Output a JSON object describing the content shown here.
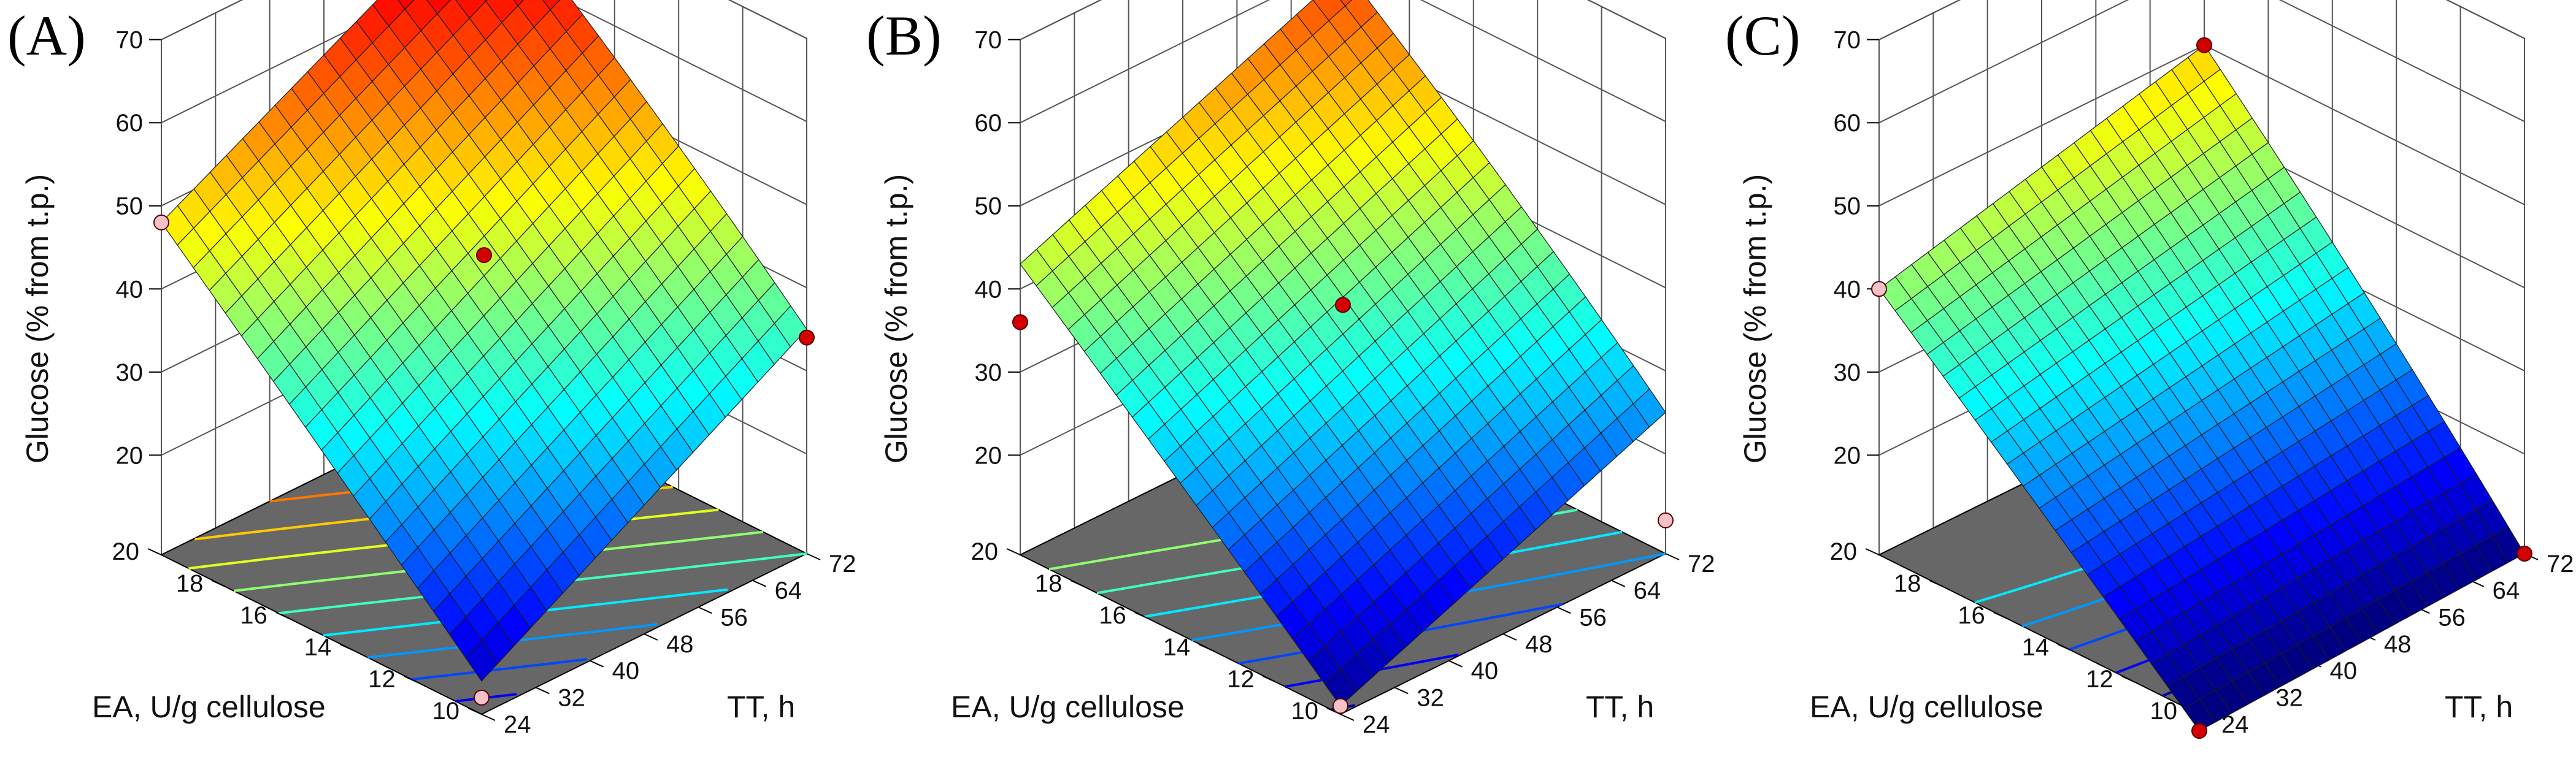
{
  "chart_data": [
    {
      "type": "surface3d",
      "panel_label": "(A)",
      "zlabel": "Glucose (% from t.p.)",
      "xlabel": "EA, U/g cellulose",
      "ylabel": "TT, h",
      "x_ticks": [
        "10",
        "12",
        "14",
        "16",
        "18",
        "20"
      ],
      "y_ticks": [
        "24",
        "32",
        "40",
        "48",
        "56",
        "64",
        "72"
      ],
      "z_ticks": [
        "20",
        "30",
        "40",
        "50",
        "60",
        "70"
      ],
      "xlim": [
        10,
        20
      ],
      "ylim": [
        24,
        72
      ],
      "zlim": [
        8,
        70
      ],
      "surface_corners": {
        "EA10_TT24": 12,
        "EA20_TT24": 48,
        "EA10_TT72": 35,
        "EA20_TT72": 69
      },
      "design_points": [
        {
          "EA": 20,
          "TT": 24,
          "glucose": 48,
          "position": "below"
        },
        {
          "EA": 10,
          "TT": 24,
          "glucose": 10,
          "position": "below"
        },
        {
          "EA": 20,
          "TT": 72,
          "glucose": 69,
          "position": "below"
        },
        {
          "EA": 10,
          "TT": 72,
          "glucose": 34,
          "position": "above"
        },
        {
          "EA": 15,
          "TT": 48,
          "glucose": 44,
          "position": "above"
        }
      ],
      "contour_levels": [
        15,
        20,
        25,
        30,
        35,
        40,
        45,
        50,
        55,
        60
      ]
    },
    {
      "type": "surface3d",
      "panel_label": "(B)",
      "zlabel": "Glucose (% from t.p.)",
      "xlabel": "EA, U/g cellulose",
      "ylabel": "TT, h",
      "x_ticks": [
        "10",
        "12",
        "14",
        "16",
        "18",
        "20"
      ],
      "y_ticks": [
        "24",
        "32",
        "40",
        "48",
        "56",
        "64",
        "72"
      ],
      "z_ticks": [
        "20",
        "30",
        "40",
        "50",
        "60",
        "70"
      ],
      "xlim": [
        10,
        20
      ],
      "ylim": [
        24,
        72
      ],
      "zlim": [
        8,
        70
      ],
      "surface_corners": {
        "EA10_TT24": 9,
        "EA20_TT24": 43,
        "EA10_TT72": 25,
        "EA20_TT72": 59
      },
      "design_points": [
        {
          "EA": 20,
          "TT": 24,
          "glucose": 36,
          "position": "above"
        },
        {
          "EA": 10,
          "TT": 24,
          "glucose": 9,
          "position": "below"
        },
        {
          "EA": 20,
          "TT": 72,
          "glucose": 64,
          "position": "above"
        },
        {
          "EA": 10,
          "TT": 72,
          "glucose": 12,
          "position": "below"
        },
        {
          "EA": 15,
          "TT": 48,
          "glucose": 38,
          "position": "above"
        }
      ],
      "contour_levels": [
        10,
        15,
        20,
        25,
        30,
        35,
        40
      ]
    },
    {
      "type": "surface3d",
      "panel_label": "(C)",
      "zlabel": "Glucose (% from t.p.)",
      "xlabel": "EA, U/g cellulose",
      "ylabel": "TT, h",
      "x_ticks": [
        "10",
        "12",
        "14",
        "16",
        "18",
        "20"
      ],
      "y_ticks": [
        "24",
        "32",
        "40",
        "48",
        "56",
        "64",
        "72"
      ],
      "z_ticks": [
        "20",
        "30",
        "40",
        "50",
        "60",
        "70"
      ],
      "xlim": [
        10,
        20
      ],
      "ylim": [
        24,
        72
      ],
      "zlim": [
        8,
        70
      ],
      "surface_corners": {
        "EA10_TT24": 6,
        "EA20_TT24": 40,
        "EA10_TT72": 8,
        "EA20_TT72": 50
      },
      "design_points": [
        {
          "EA": 20,
          "TT": 24,
          "glucose": 40,
          "position": "below"
        },
        {
          "EA": 10,
          "TT": 24,
          "glucose": 6,
          "position": "above"
        },
        {
          "EA": 20,
          "TT": 72,
          "glucose": 50,
          "position": "above"
        },
        {
          "EA": 10,
          "TT": 72,
          "glucose": 8,
          "position": "above"
        }
      ],
      "contour_levels": [
        10,
        15,
        20,
        25,
        30
      ]
    }
  ]
}
